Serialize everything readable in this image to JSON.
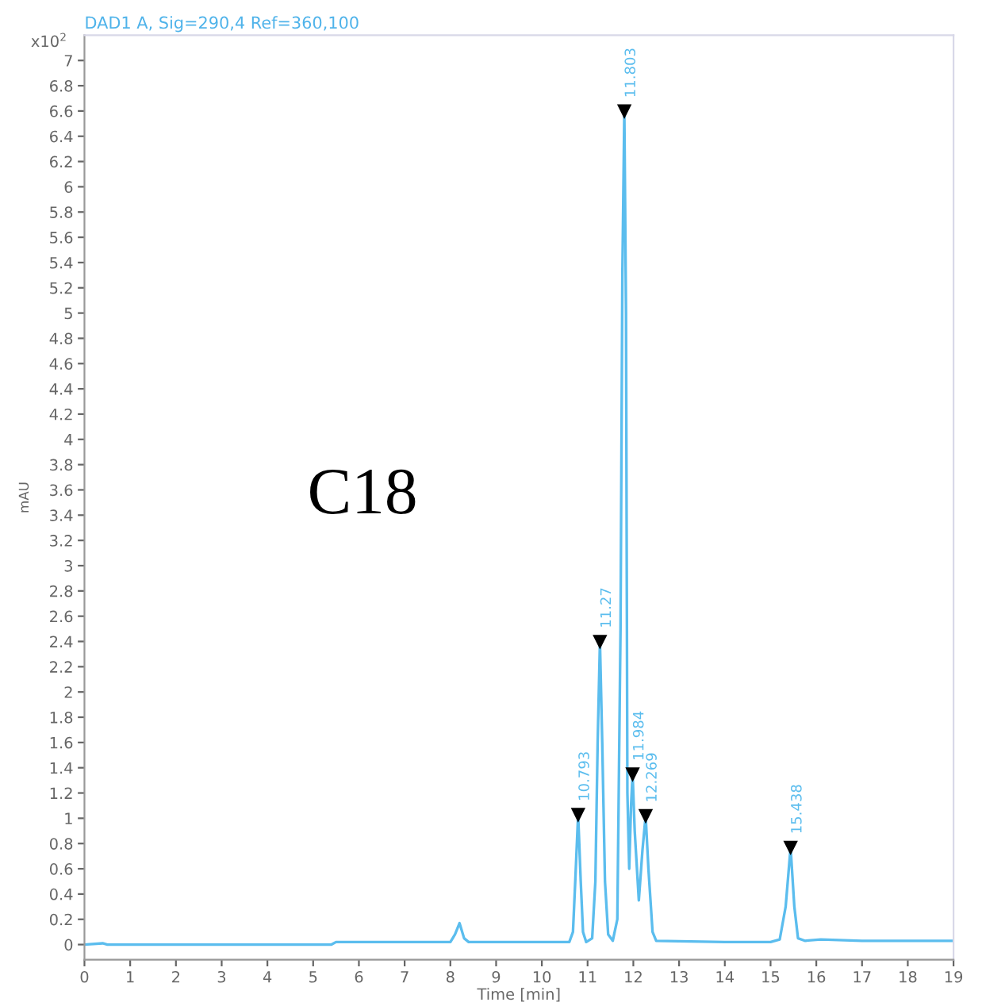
{
  "chart_data": {
    "type": "line",
    "title": "DAD1 A, Sig=290,4 Ref=360,100",
    "xlabel": "Time [min]",
    "ylabel": "mAU",
    "annotations": [
      "C18",
      "x10$^{2}$",
      {
        "text": "10.793",
        "x": 10.793,
        "y": 1.03
      },
      {
        "text": "11.27",
        "x": 11.27,
        "y": 2.4
      },
      {
        "text": "11.803",
        "x": 11.803,
        "y": 6.6
      },
      {
        "text": "11.984",
        "x": 11.984,
        "y": 1.35
      },
      {
        "text": "12.269",
        "x": 12.269,
        "y": 1.02
      },
      {
        "text": "15.438",
        "x": 15.438,
        "y": 0.77
      }
    ],
    "x": [
      0,
      0.4,
      0.5,
      2,
      5.4,
      5.5,
      8.0,
      8.1,
      8.2,
      8.3,
      8.4,
      10.6,
      10.68,
      10.73,
      10.793,
      10.85,
      10.9,
      10.97,
      11.1,
      11.17,
      11.22,
      11.27,
      11.32,
      11.38,
      11.45,
      11.55,
      11.65,
      11.72,
      11.76,
      11.803,
      11.84,
      11.87,
      11.91,
      11.95,
      11.984,
      12.03,
      12.12,
      12.2,
      12.269,
      12.33,
      12.42,
      12.5,
      14.0,
      15.0,
      15.2,
      15.33,
      15.438,
      15.52,
      15.6,
      15.75,
      16.1,
      17,
      19
    ],
    "series": [
      {
        "color": "#5bbdee",
        "values": [
          0.0,
          0.01,
          0.0,
          0.0,
          0.0,
          0.02,
          0.02,
          0.08,
          0.17,
          0.05,
          0.02,
          0.02,
          0.1,
          0.5,
          1.03,
          0.5,
          0.1,
          0.02,
          0.05,
          0.5,
          1.6,
          2.4,
          1.6,
          0.5,
          0.08,
          0.03,
          0.2,
          2.5,
          5.3,
          6.6,
          5.0,
          1.2,
          0.6,
          1.1,
          1.35,
          0.9,
          0.35,
          0.75,
          1.02,
          0.6,
          0.1,
          0.03,
          0.02,
          0.02,
          0.04,
          0.3,
          0.77,
          0.3,
          0.05,
          0.03,
          0.04,
          0.03,
          0.03
        ]
      }
    ],
    "xlim": [
      0,
      19
    ],
    "ylim": [
      -0.12,
      7.2
    ],
    "xticks": [
      0,
      1,
      2,
      3,
      4,
      5,
      6,
      7,
      8,
      9,
      10,
      11,
      12,
      13,
      14,
      15,
      16,
      17,
      18,
      19
    ],
    "yticks": [
      0,
      0.2,
      0.4,
      0.6,
      0.8,
      1,
      1.2,
      1.4,
      1.6,
      1.8,
      2,
      2.2,
      2.4,
      2.6,
      2.8,
      3,
      3.2,
      3.4,
      3.6,
      3.8,
      4,
      4.2,
      4.4,
      4.6,
      4.8,
      5,
      5.2,
      5.4,
      5.6,
      5.8,
      6,
      6.2,
      6.4,
      6.6,
      6.8,
      7
    ],
    "grid": false,
    "marker": "none",
    "line_style": "solid"
  }
}
